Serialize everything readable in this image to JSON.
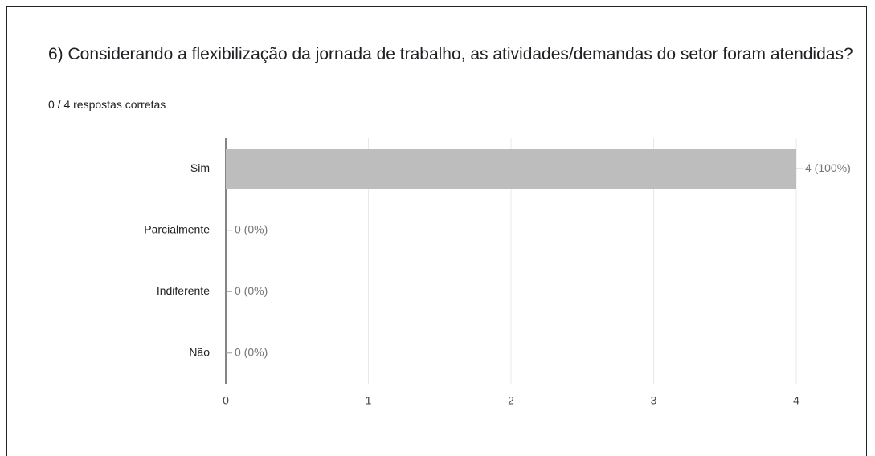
{
  "chart_data": {
    "type": "bar",
    "orientation": "horizontal",
    "title": "6) Considerando a flexibilização da jornada de trabalho, as atividades/demandas do setor foram atendidas?",
    "subtitle": "0 / 4 respostas corretas",
    "categories": [
      "Sim",
      "Parcialmente",
      "Indiferente",
      "Não"
    ],
    "values": [
      4,
      0,
      0,
      0
    ],
    "value_labels": [
      "4 (100%)",
      "0 (0%)",
      "0 (0%)",
      "0 (0%)"
    ],
    "color": "#bdbdbd",
    "xlim": [
      0,
      4
    ],
    "xticks": [
      0,
      1,
      2,
      3,
      4
    ],
    "grid": true
  }
}
